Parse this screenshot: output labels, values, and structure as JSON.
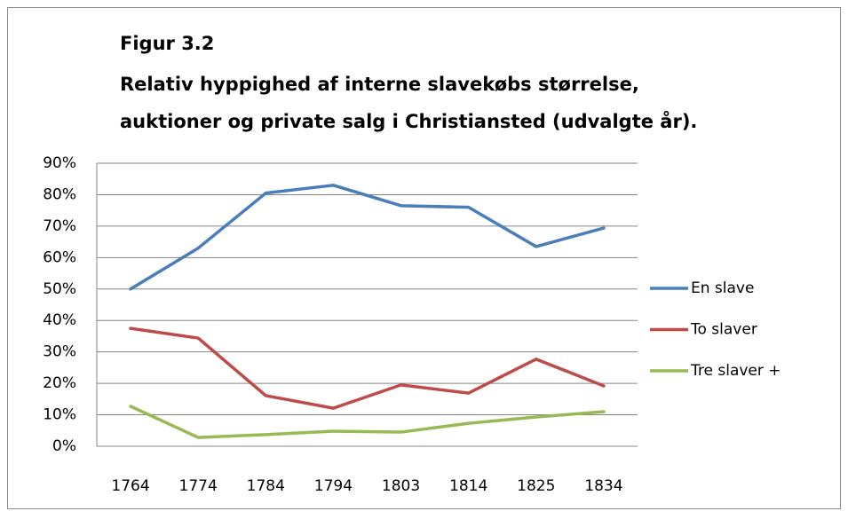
{
  "chart_data": {
    "type": "line",
    "title": "Figur 3.2",
    "subtitle": [
      "Relativ hyppighed af interne slavekøbs størrelse,",
      "auktioner og private salg i Christiansted (udvalgte år)."
    ],
    "categories": [
      "1764",
      "1774",
      "1784",
      "1794",
      "1803",
      "1814",
      "1825",
      "1834"
    ],
    "series": [
      {
        "name": "En slave",
        "color": "#4a7ebb",
        "values": [
          50,
          63,
          80.5,
          83,
          76.5,
          76,
          63.5,
          69.4
        ]
      },
      {
        "name": "To slaver",
        "color": "#be4b48",
        "values": [
          37.5,
          34.4,
          16.1,
          12.1,
          19.5,
          16.9,
          27.7,
          19.2
        ]
      },
      {
        "name": "Tre slaver +",
        "color": "#98b954",
        "values": [
          12.7,
          2.8,
          3.7,
          4.8,
          4.5,
          7.3,
          9.3,
          11
        ]
      }
    ],
    "ylim": [
      0,
      90
    ],
    "yticks": [
      {
        "value": 0,
        "label": "0%"
      },
      {
        "value": 10,
        "label": "10%"
      },
      {
        "value": 20,
        "label": "20%"
      },
      {
        "value": 30,
        "label": "30%"
      },
      {
        "value": 40,
        "label": "40%"
      },
      {
        "value": 50,
        "label": "50%"
      },
      {
        "value": 60,
        "label": "60%"
      },
      {
        "value": 70,
        "label": "70%"
      },
      {
        "value": 80,
        "label": "80%"
      },
      {
        "value": 90,
        "label": "90%"
      }
    ],
    "grid": true,
    "legend": "right"
  }
}
